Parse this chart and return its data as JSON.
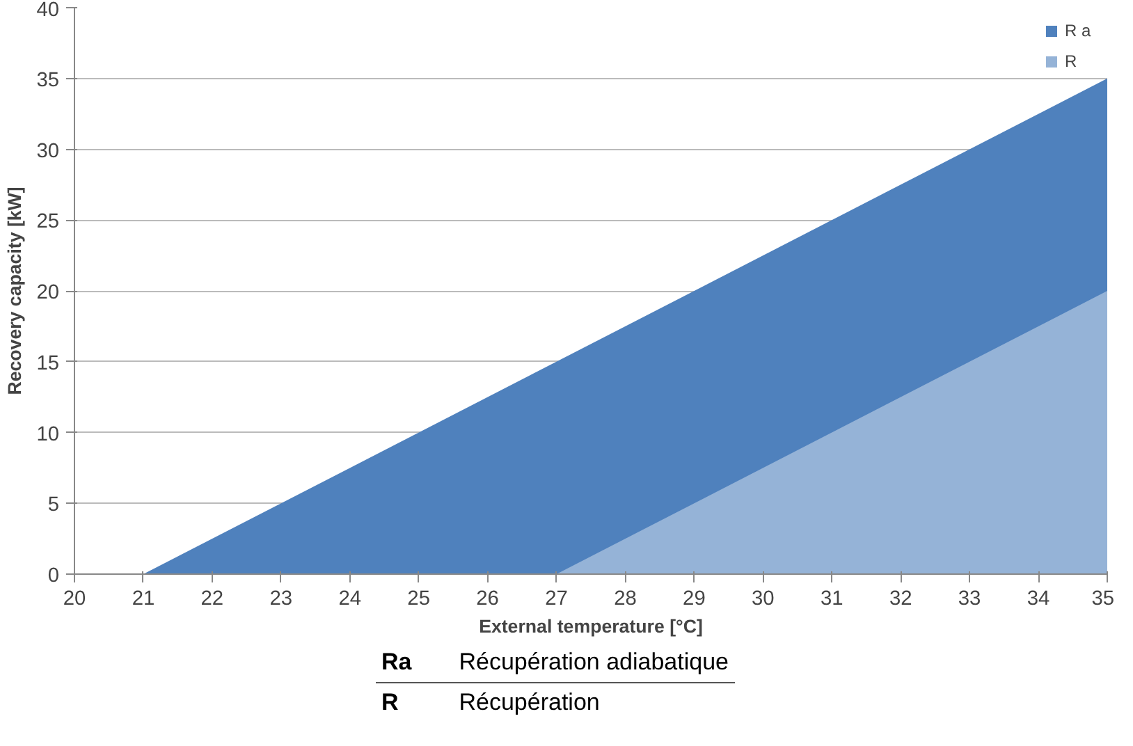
{
  "chart_data": {
    "type": "area",
    "xlabel": "External temperature [°C]",
    "ylabel": "Recovery capacity [kW]",
    "series": [
      {
        "name": "R a",
        "color": "#4f81bd",
        "x": [
          21,
          35
        ],
        "values": [
          0,
          35
        ]
      },
      {
        "name": "R",
        "color": "#95b3d7",
        "x": [
          27,
          35
        ],
        "values": [
          0,
          20
        ]
      }
    ],
    "xlim": [
      20,
      35
    ],
    "xticks": [
      20,
      21,
      22,
      23,
      24,
      25,
      26,
      27,
      28,
      29,
      30,
      31,
      32,
      33,
      34,
      35
    ],
    "ylim": [
      0,
      40
    ],
    "yticks": [
      0,
      5,
      10,
      15,
      20,
      25,
      30,
      35,
      40
    ],
    "grid": "y",
    "legend": "top right",
    "annotations": [
      "Ra",
      "Récupération adiabatique",
      "R",
      "Récupération"
    ]
  }
}
